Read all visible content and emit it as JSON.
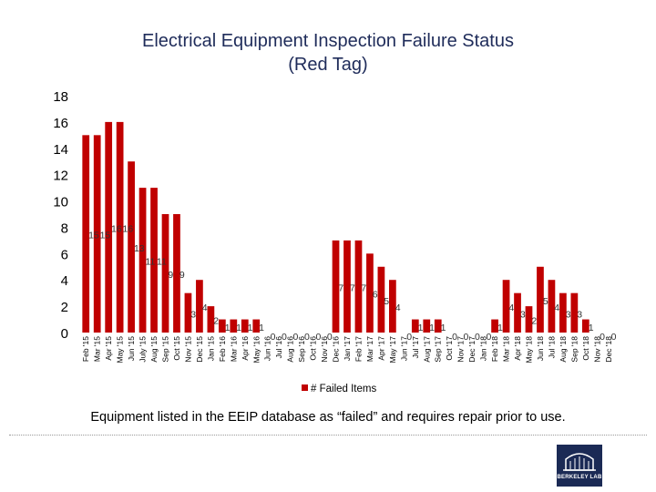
{
  "title_line1": "Electrical Equipment Inspection Failure Status",
  "title_line2": "(Red Tag)",
  "footnote": "Equipment listed in the EEIP database as “failed” and requires repair prior to use.",
  "logo_text": "BERKELEY LAB",
  "colors": {
    "bar": "#c00000",
    "title": "#1f2c5a",
    "logo_bg": "#1b2a55"
  },
  "chart_data": {
    "type": "bar",
    "title": "Electrical Equipment Inspection Failure Status (Red Tag)",
    "xlabel": "",
    "ylabel": "",
    "ylim": [
      0,
      18
    ],
    "y_ticks": [
      0,
      2,
      4,
      6,
      8,
      10,
      12,
      14,
      16,
      18
    ],
    "legend": "# Failed Items",
    "legend_position": "bottom",
    "categories": [
      "Feb '15",
      "Mar '15",
      "Apr '15",
      "May '15",
      "Jun '15",
      "July '15",
      "Aug '15",
      "Sep '15",
      "Oct '15",
      "Nov '15",
      "Dec '15",
      "Jan '15",
      "Feb '16",
      "Mar '16",
      "Apr '16",
      "May '16",
      "Jun '16",
      "Jul '16",
      "Aug '16",
      "Sep '16",
      "Oct '16",
      "Nov '16",
      "Dec '16",
      "Jan '17",
      "Feb '17",
      "Mar '17",
      "Apr '17",
      "May '17",
      "Jun '17",
      "Jul '17",
      "Aug '17",
      "Sep '17",
      "Oct '17",
      "Nov '17",
      "Dec '17",
      "Jan '18",
      "Feb '18",
      "Mar '18",
      "Apr '18",
      "May '18",
      "Jun '18",
      "Jul '18",
      "Aug '18",
      "Sep '18",
      "Oct '18",
      "Nov '18",
      "Dec '18"
    ],
    "series": [
      {
        "name": "# Failed Items",
        "values": [
          15,
          15,
          16,
          16,
          13,
          11,
          11,
          9,
          9,
          3,
          4,
          2,
          1,
          1,
          1,
          1,
          0,
          0,
          0,
          0,
          0,
          0,
          7,
          7,
          7,
          6,
          5,
          4,
          0,
          1,
          1,
          1,
          0,
          0,
          0,
          0,
          1,
          4,
          3,
          2,
          5,
          4,
          3,
          3,
          1,
          0,
          0
        ]
      }
    ],
    "data_labels": [
      "15",
      "15",
      "16",
      "16",
      "13",
      "11",
      "11",
      "9",
      "9",
      "3",
      "4",
      "2",
      "1",
      "1",
      "1",
      "1",
      "0",
      "0",
      "0",
      "0",
      "0",
      "0",
      "7",
      "7",
      "7",
      "6",
      "5",
      "4",
      "0",
      "1",
      "1",
      "1",
      "0",
      "0",
      "0",
      "0",
      "1",
      "4",
      "3",
      "2",
      "5",
      "4",
      "3",
      "3",
      "1",
      "0",
      "0"
    ]
  }
}
